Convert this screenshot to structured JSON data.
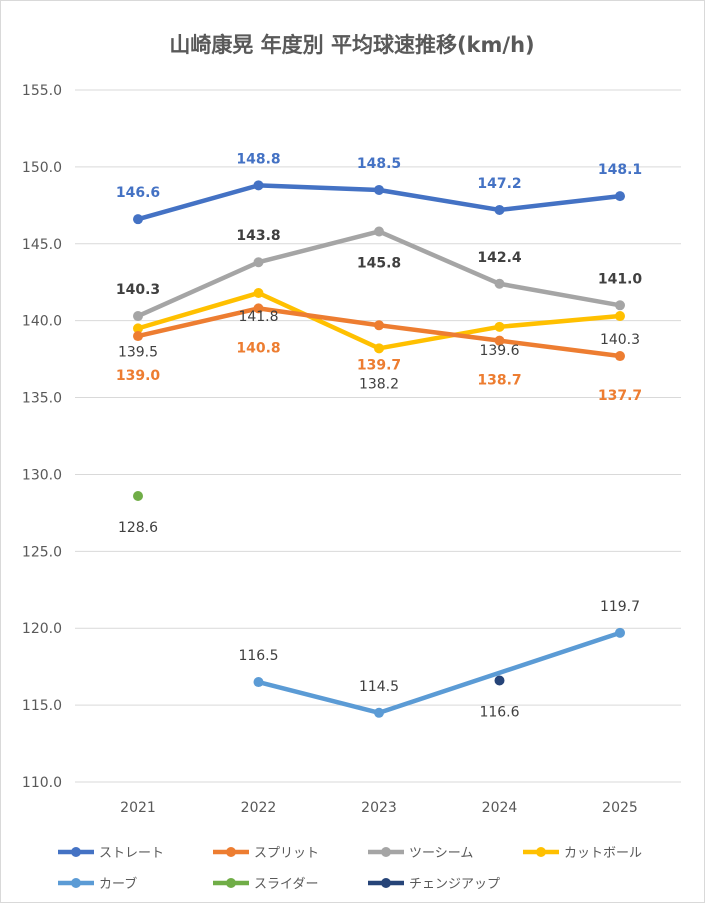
{
  "chart_data": {
    "type": "line",
    "title": "山崎康晃 年度別 平均球速推移(km/h)",
    "categories": [
      "2021",
      "2022",
      "2023",
      "2024",
      "2025"
    ],
    "ylim": [
      110,
      155
    ],
    "yticks": [
      "110.0",
      "115.0",
      "120.0",
      "125.0",
      "130.0",
      "135.0",
      "140.0",
      "145.0",
      "150.0",
      "155.0"
    ],
    "grid": true,
    "legend": "bottom",
    "series": [
      {
        "name": "ストレート",
        "color": "#4472C4",
        "values": [
          146.6,
          148.8,
          148.5,
          147.2,
          148.1
        ],
        "labels": [
          "146.6",
          "148.8",
          "148.5",
          "147.2",
          "148.1"
        ],
        "label_color": "#4472C4"
      },
      {
        "name": "スプリット",
        "color": "#ED7D31",
        "values": [
          139.0,
          140.8,
          139.7,
          138.7,
          137.7
        ],
        "labels": [
          "139.0",
          "140.8",
          "139.7",
          "138.7",
          "137.7"
        ],
        "label_color": "#ED7D31"
      },
      {
        "name": "ツーシーム",
        "color": "#A5A5A5",
        "values": [
          140.3,
          143.8,
          145.8,
          142.4,
          141.0
        ],
        "labels": [
          "140.3",
          "143.8",
          "145.8",
          "142.4",
          "141.0"
        ],
        "label_color": "#404040"
      },
      {
        "name": "カットボール",
        "color": "#FFC000",
        "values": [
          139.5,
          141.8,
          138.2,
          139.6,
          140.3
        ],
        "labels": [
          "139.5",
          "141.8",
          "138.2",
          "139.6",
          "140.3"
        ],
        "label_color": "#404040"
      },
      {
        "name": "カーブ",
        "color": "#5B9BD5",
        "values": [
          null,
          116.5,
          114.5,
          null,
          119.7
        ],
        "labels": [
          null,
          "116.5",
          "114.5",
          null,
          "119.7"
        ],
        "label_color": "#404040"
      },
      {
        "name": "スライダー",
        "color": "#70AD47",
        "values": [
          128.6,
          null,
          null,
          null,
          null
        ],
        "labels": [
          "128.6",
          null,
          null,
          null,
          null
        ],
        "label_color": "#404040"
      },
      {
        "name": "チェンジアップ",
        "color": "#264478",
        "values": [
          null,
          null,
          null,
          116.6,
          null
        ],
        "labels": [
          null,
          null,
          null,
          "116.6",
          null
        ],
        "label_color": "#404040"
      }
    ]
  }
}
